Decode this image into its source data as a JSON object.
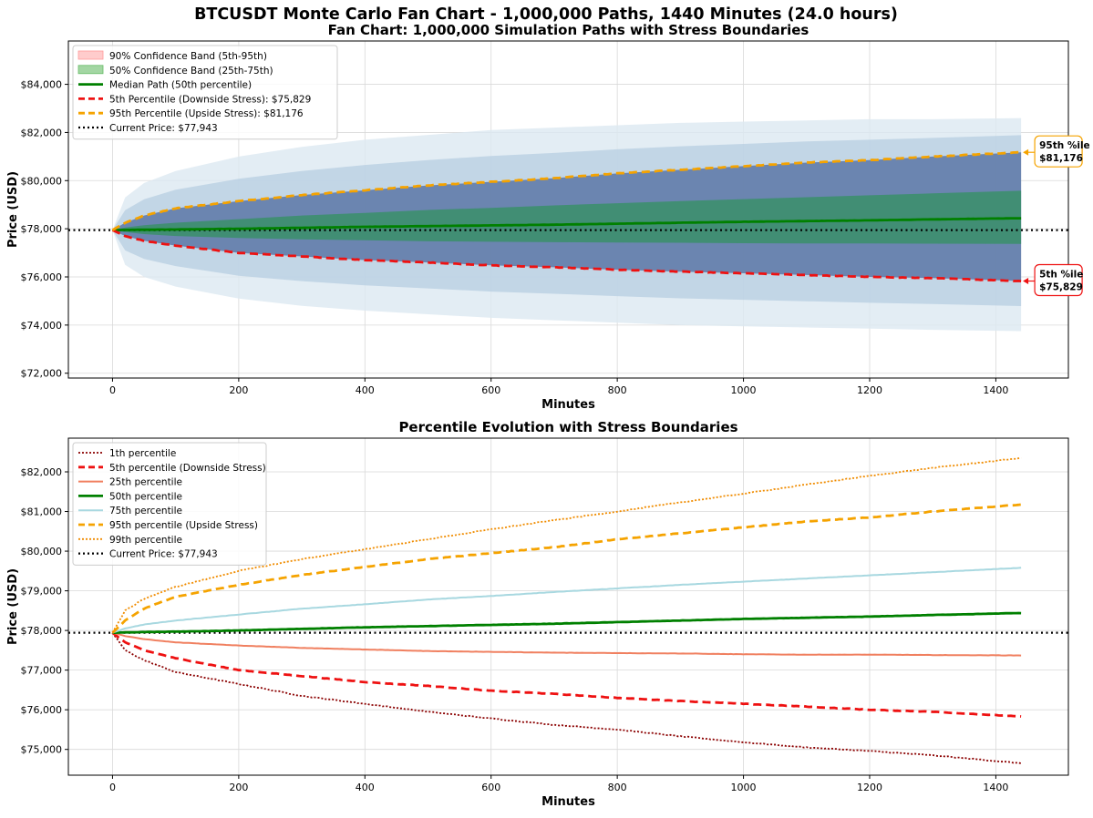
{
  "suptitle": "BTCUSDT Monte Carlo Fan Chart - 1,000,000 Paths, 1440 Minutes (24.0 hours)",
  "colors": {
    "band90": "#ffb3b3",
    "band50": "#3a8f6a",
    "median": "#008000",
    "p5": "#ee1111",
    "p95": "#f5a300",
    "current": "#000000",
    "p1": "#8b0000",
    "p25": "#f08060",
    "p75": "#a8d8e0",
    "p99": "#f08c00",
    "paths": "#4a7fb0"
  },
  "chart_data": [
    {
      "type": "area",
      "title": "Fan Chart: 1,000,000 Simulation Paths with Stress Boundaries",
      "xlabel": "Minutes",
      "ylabel": "Price (USD)",
      "xlim": [
        -70,
        1515
      ],
      "ylim": [
        71800,
        85800
      ],
      "xticks": [
        0,
        200,
        400,
        600,
        800,
        1000,
        1200,
        1400
      ],
      "xtick_labels": [
        "0",
        "200",
        "400",
        "600",
        "800",
        "1000",
        "1200",
        "1400"
      ],
      "yticks": [
        72000,
        74000,
        76000,
        78000,
        80000,
        82000,
        84000
      ],
      "ytick_labels": [
        "$72,000",
        "$74,000",
        "$76,000",
        "$78,000",
        "$80,000",
        "$82,000",
        "$84,000"
      ],
      "grid": true,
      "legend_position": "top-left",
      "current_price": 77943,
      "x": [
        0,
        20,
        50,
        100,
        200,
        300,
        400,
        500,
        600,
        700,
        800,
        900,
        1000,
        1100,
        1200,
        1300,
        1440
      ],
      "cloud": {
        "upper": [
          77943,
          79300,
          79900,
          80400,
          81000,
          81400,
          81700,
          81900,
          82100,
          82200,
          82300,
          82400,
          82450,
          82500,
          82550,
          82550,
          82600
        ],
        "lower": [
          77943,
          76500,
          76000,
          75600,
          75100,
          74800,
          74600,
          74450,
          74300,
          74200,
          74100,
          74000,
          73950,
          73900,
          73850,
          73800,
          73750
        ]
      },
      "series": [
        {
          "name": "90% Confidence Band (5th-95th)",
          "kind": "band",
          "lower": [
            77943,
            77700,
            77500,
            77300,
            77000,
            76850,
            76700,
            76600,
            76480,
            76400,
            76300,
            76220,
            76150,
            76080,
            76000,
            75950,
            75829
          ],
          "upper": [
            77943,
            78250,
            78550,
            78850,
            79150,
            79400,
            79600,
            79800,
            79950,
            80100,
            80300,
            80450,
            80600,
            80750,
            80850,
            81000,
            81176
          ]
        },
        {
          "name": "50% Confidence Band (25th-75th)",
          "kind": "band",
          "lower": [
            77943,
            77860,
            77780,
            77700,
            77620,
            77560,
            77520,
            77480,
            77460,
            77440,
            77430,
            77420,
            77400,
            77390,
            77390,
            77380,
            77370
          ],
          "upper": [
            77943,
            78050,
            78150,
            78250,
            78400,
            78550,
            78660,
            78780,
            78870,
            78970,
            79060,
            79150,
            79230,
            79310,
            79390,
            79470,
            79580
          ]
        },
        {
          "name": "Median Path (50th percentile)",
          "kind": "line",
          "values": [
            77943,
            77950,
            77960,
            77970,
            78000,
            78040,
            78080,
            78110,
            78140,
            78170,
            78210,
            78250,
            78290,
            78320,
            78350,
            78390,
            78440
          ]
        },
        {
          "name": "5th Percentile (Downside Stress): $75,829",
          "kind": "line",
          "values": [
            77943,
            77700,
            77500,
            77300,
            77000,
            76850,
            76700,
            76600,
            76480,
            76400,
            76300,
            76220,
            76150,
            76080,
            76000,
            75950,
            75829
          ]
        },
        {
          "name": "95th Percentile (Upside Stress): $81,176",
          "kind": "line",
          "values": [
            77943,
            78250,
            78550,
            78850,
            79150,
            79400,
            79600,
            79800,
            79950,
            80100,
            80300,
            80450,
            80600,
            80750,
            80850,
            81000,
            81176
          ]
        },
        {
          "name": "Current Price: $77,943",
          "kind": "hline",
          "value": 77943
        }
      ],
      "annotations": [
        {
          "line1": "95th %ile",
          "line2": "$81,176",
          "x": 1440,
          "y": 81176,
          "color": "#f5a300"
        },
        {
          "line1": "5th %ile",
          "line2": "$75,829",
          "x": 1440,
          "y": 75829,
          "color": "#ee1111"
        }
      ]
    },
    {
      "type": "line",
      "title": "Percentile Evolution with Stress Boundaries",
      "xlabel": "Minutes",
      "ylabel": "Price (USD)",
      "xlim": [
        -70,
        1515
      ],
      "ylim": [
        74350,
        82850
      ],
      "xticks": [
        0,
        200,
        400,
        600,
        800,
        1000,
        1200,
        1400
      ],
      "xtick_labels": [
        "0",
        "200",
        "400",
        "600",
        "800",
        "1000",
        "1200",
        "1400"
      ],
      "yticks": [
        75000,
        76000,
        77000,
        78000,
        79000,
        80000,
        81000,
        82000
      ],
      "ytick_labels": [
        "$75,000",
        "$76,000",
        "$77,000",
        "$78,000",
        "$79,000",
        "$80,000",
        "$81,000",
        "$82,000"
      ],
      "grid": true,
      "legend_position": "top-left",
      "x": [
        0,
        20,
        50,
        100,
        200,
        300,
        400,
        500,
        600,
        700,
        800,
        900,
        1000,
        1100,
        1200,
        1300,
        1440
      ],
      "series": [
        {
          "name": "1th percentile",
          "values": [
            77943,
            77500,
            77250,
            76950,
            76650,
            76350,
            76150,
            75950,
            75780,
            75620,
            75500,
            75330,
            75180,
            75050,
            74960,
            74850,
            74650
          ]
        },
        {
          "name": "5th percentile (Downside Stress)",
          "values": [
            77943,
            77700,
            77500,
            77300,
            77000,
            76850,
            76700,
            76600,
            76480,
            76400,
            76300,
            76220,
            76150,
            76080,
            76000,
            75950,
            75829
          ]
        },
        {
          "name": "25th percentile",
          "values": [
            77943,
            77860,
            77780,
            77700,
            77620,
            77560,
            77520,
            77480,
            77460,
            77440,
            77430,
            77420,
            77400,
            77390,
            77390,
            77380,
            77370
          ]
        },
        {
          "name": "50th percentile",
          "values": [
            77943,
            77950,
            77960,
            77970,
            78000,
            78040,
            78080,
            78110,
            78140,
            78170,
            78210,
            78250,
            78290,
            78320,
            78350,
            78390,
            78440
          ]
        },
        {
          "name": "75th percentile",
          "values": [
            77943,
            78050,
            78150,
            78250,
            78400,
            78550,
            78660,
            78780,
            78870,
            78970,
            79060,
            79150,
            79230,
            79310,
            79390,
            79470,
            79580
          ]
        },
        {
          "name": "95th percentile (Upside Stress)",
          "values": [
            77943,
            78250,
            78550,
            78850,
            79150,
            79400,
            79600,
            79800,
            79950,
            80100,
            80300,
            80450,
            80600,
            80750,
            80850,
            81000,
            81176
          ]
        },
        {
          "name": "99th percentile",
          "values": [
            77943,
            78500,
            78800,
            79100,
            79500,
            79800,
            80050,
            80300,
            80550,
            80780,
            81000,
            81230,
            81450,
            81680,
            81900,
            82100,
            82350
          ]
        },
        {
          "name": "Current Price: $77,943",
          "kind": "hline",
          "value": 77943
        }
      ]
    }
  ]
}
